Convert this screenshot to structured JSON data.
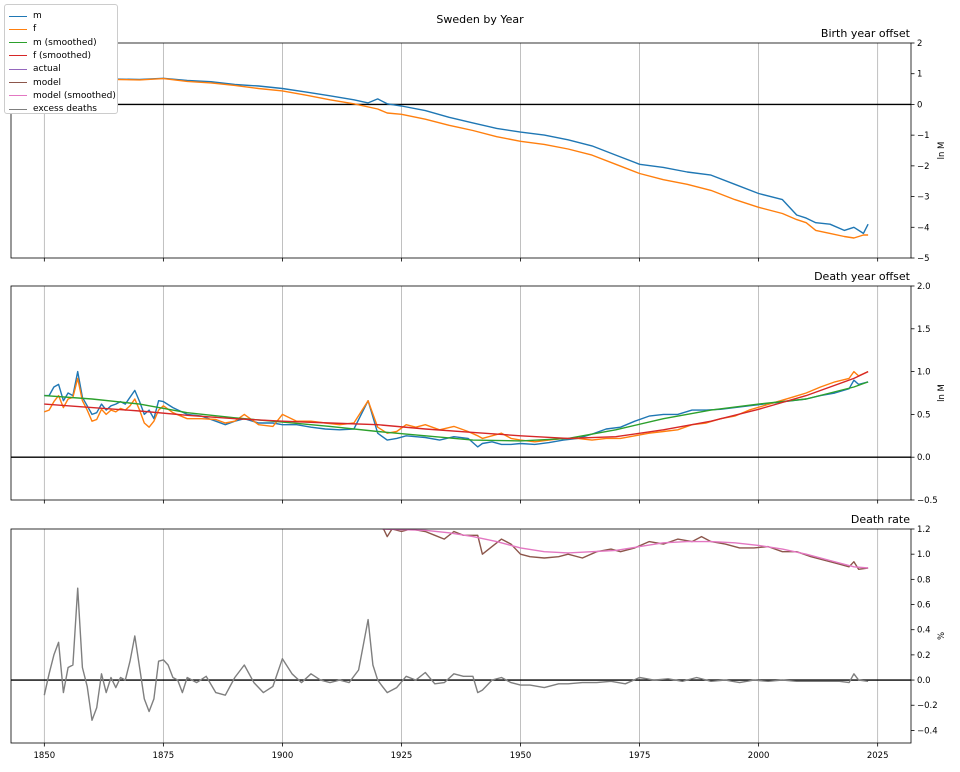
{
  "figure_title": "Sweden by Year",
  "legend": [
    {
      "label": "m",
      "color": "#1f77b4"
    },
    {
      "label": "f",
      "color": "#ff7f0e"
    },
    {
      "label": "m (smoothed)",
      "color": "#2ca02c"
    },
    {
      "label": "f (smoothed)",
      "color": "#d62728"
    },
    {
      "label": "actual",
      "color": "#9467bd"
    },
    {
      "label": "model",
      "color": "#8c564b"
    },
    {
      "label": "model (smoothed)",
      "color": "#e377c2"
    },
    {
      "label": "excess deaths",
      "color": "#7f7f7f"
    }
  ],
  "chart_data": [
    {
      "type": "line",
      "title": "Birth year offset",
      "ylabel": "ln M",
      "xlim": [
        1843,
        2032
      ],
      "ylim": [
        -5,
        2
      ],
      "x_ticks": [
        1850,
        1875,
        1900,
        1925,
        1950,
        1975,
        2000,
        2025
      ],
      "y_ticks": [
        -5,
        -4,
        -3,
        -2,
        -1,
        0,
        1,
        2
      ],
      "grid": "vertical",
      "zero_line": true,
      "series": [
        {
          "name": "m",
          "color": "#1f77b4",
          "x": [
            1843,
            1850,
            1860,
            1870,
            1875,
            1880,
            1885,
            1890,
            1895,
            1900,
            1905,
            1910,
            1915,
            1918,
            1920,
            1922,
            1925,
            1930,
            1935,
            1940,
            1945,
            1950,
            1955,
            1960,
            1965,
            1970,
            1975,
            1980,
            1985,
            1990,
            1995,
            2000,
            2005,
            2008,
            2010,
            2012,
            2015,
            2018,
            2020,
            2022,
            2023
          ],
          "y": [
            0.85,
            0.82,
            0.84,
            0.81,
            0.85,
            0.78,
            0.74,
            0.65,
            0.6,
            0.52,
            0.4,
            0.28,
            0.15,
            0.05,
            0.18,
            0.02,
            -0.05,
            -0.2,
            -0.42,
            -0.6,
            -0.78,
            -0.9,
            -1.0,
            -1.15,
            -1.35,
            -1.65,
            -1.95,
            -2.05,
            -2.2,
            -2.3,
            -2.6,
            -2.9,
            -3.1,
            -3.6,
            -3.7,
            -3.85,
            -3.9,
            -4.1,
            -4.0,
            -4.2,
            -3.9
          ]
        },
        {
          "name": "f",
          "color": "#ff7f0e",
          "x": [
            1843,
            1850,
            1860,
            1870,
            1875,
            1880,
            1885,
            1890,
            1895,
            1900,
            1905,
            1910,
            1915,
            1920,
            1922,
            1925,
            1930,
            1935,
            1940,
            1945,
            1950,
            1955,
            1960,
            1965,
            1970,
            1975,
            1980,
            1985,
            1990,
            1995,
            2000,
            2005,
            2008,
            2010,
            2012,
            2015,
            2018,
            2020,
            2022,
            2023
          ],
          "y": [
            0.82,
            0.8,
            0.82,
            0.8,
            0.84,
            0.75,
            0.7,
            0.62,
            0.52,
            0.44,
            0.3,
            0.15,
            0.02,
            -0.15,
            -0.28,
            -0.32,
            -0.48,
            -0.68,
            -0.85,
            -1.05,
            -1.2,
            -1.3,
            -1.45,
            -1.65,
            -1.95,
            -2.25,
            -2.45,
            -2.6,
            -2.8,
            -3.1,
            -3.35,
            -3.55,
            -3.75,
            -3.85,
            -4.1,
            -4.2,
            -4.3,
            -4.35,
            -4.25,
            -4.25
          ]
        }
      ]
    },
    {
      "type": "line",
      "title": "Death year offset",
      "ylabel": "ln M",
      "xlim": [
        1843,
        2032
      ],
      "ylim": [
        -0.5,
        2.0
      ],
      "x_ticks": [
        1850,
        1875,
        1900,
        1925,
        1950,
        1975,
        2000,
        2025
      ],
      "y_ticks": [
        -0.5,
        0.0,
        0.5,
        1.0,
        1.5,
        2.0
      ],
      "grid": "vertical",
      "zero_line": true,
      "series": [
        {
          "name": "m",
          "color": "#1f77b4",
          "x": [
            1850,
            1851,
            1852,
            1853,
            1854,
            1855,
            1856,
            1857,
            1858,
            1859,
            1860,
            1861,
            1862,
            1863,
            1864,
            1865,
            1866,
            1867,
            1868,
            1869,
            1870,
            1871,
            1872,
            1873,
            1874,
            1875,
            1877,
            1880,
            1883,
            1886,
            1888,
            1890,
            1892,
            1895,
            1898,
            1900,
            1903,
            1906,
            1909,
            1912,
            1915,
            1918,
            1920,
            1922,
            1924,
            1926,
            1928,
            1930,
            1933,
            1936,
            1939,
            1941,
            1942,
            1944,
            1946,
            1948,
            1950,
            1953,
            1956,
            1959,
            1962,
            1965,
            1968,
            1971,
            1974,
            1977,
            1980,
            1983,
            1986,
            1989,
            1992,
            1995,
            1998,
            2001,
            2004,
            2007,
            2010,
            2013,
            2016,
            2019,
            2020,
            2021,
            2023
          ],
          "y": [
            0.72,
            0.72,
            0.82,
            0.85,
            0.66,
            0.75,
            0.72,
            1.0,
            0.7,
            0.6,
            0.5,
            0.52,
            0.62,
            0.55,
            0.6,
            0.62,
            0.65,
            0.62,
            0.7,
            0.78,
            0.65,
            0.5,
            0.55,
            0.45,
            0.66,
            0.65,
            0.58,
            0.5,
            0.48,
            0.42,
            0.38,
            0.42,
            0.45,
            0.4,
            0.4,
            0.38,
            0.38,
            0.35,
            0.33,
            0.32,
            0.33,
            0.66,
            0.28,
            0.2,
            0.22,
            0.25,
            0.24,
            0.23,
            0.2,
            0.24,
            0.22,
            0.12,
            0.16,
            0.18,
            0.15,
            0.15,
            0.16,
            0.15,
            0.17,
            0.2,
            0.22,
            0.27,
            0.33,
            0.35,
            0.42,
            0.48,
            0.5,
            0.5,
            0.55,
            0.55,
            0.56,
            0.58,
            0.6,
            0.62,
            0.64,
            0.66,
            0.68,
            0.72,
            0.75,
            0.8,
            0.9,
            0.85,
            0.88
          ]
        },
        {
          "name": "f",
          "color": "#ff7f0e",
          "x": [
            1850,
            1851,
            1852,
            1853,
            1854,
            1855,
            1856,
            1857,
            1858,
            1859,
            1860,
            1861,
            1862,
            1863,
            1864,
            1865,
            1866,
            1867,
            1868,
            1869,
            1870,
            1871,
            1872,
            1873,
            1874,
            1875,
            1877,
            1880,
            1883,
            1886,
            1888,
            1890,
            1892,
            1895,
            1898,
            1900,
            1903,
            1906,
            1909,
            1912,
            1915,
            1918,
            1920,
            1922,
            1924,
            1926,
            1928,
            1930,
            1933,
            1936,
            1939,
            1941,
            1942,
            1944,
            1946,
            1948,
            1950,
            1953,
            1956,
            1959,
            1962,
            1965,
            1968,
            1971,
            1974,
            1977,
            1980,
            1983,
            1986,
            1989,
            1992,
            1995,
            1998,
            2001,
            2004,
            2007,
            2010,
            2013,
            2016,
            2019,
            2020,
            2021,
            2023
          ],
          "y": [
            0.53,
            0.55,
            0.65,
            0.72,
            0.58,
            0.68,
            0.7,
            0.92,
            0.66,
            0.55,
            0.42,
            0.44,
            0.56,
            0.5,
            0.55,
            0.53,
            0.57,
            0.55,
            0.6,
            0.68,
            0.55,
            0.4,
            0.35,
            0.42,
            0.55,
            0.6,
            0.52,
            0.45,
            0.45,
            0.44,
            0.4,
            0.42,
            0.5,
            0.38,
            0.36,
            0.5,
            0.42,
            0.42,
            0.4,
            0.38,
            0.4,
            0.66,
            0.35,
            0.28,
            0.3,
            0.38,
            0.35,
            0.38,
            0.32,
            0.36,
            0.3,
            0.25,
            0.22,
            0.25,
            0.28,
            0.22,
            0.2,
            0.18,
            0.2,
            0.22,
            0.22,
            0.2,
            0.22,
            0.22,
            0.25,
            0.28,
            0.3,
            0.32,
            0.38,
            0.4,
            0.45,
            0.48,
            0.55,
            0.6,
            0.65,
            0.7,
            0.75,
            0.82,
            0.88,
            0.92,
            1.0,
            0.95,
            1.0
          ]
        },
        {
          "name": "m (smoothed)",
          "color": "#2ca02c",
          "x": [
            1850,
            1860,
            1870,
            1880,
            1890,
            1900,
            1910,
            1920,
            1930,
            1940,
            1950,
            1960,
            1970,
            1980,
            1990,
            2000,
            2010,
            2020,
            2023
          ],
          "y": [
            0.72,
            0.68,
            0.62,
            0.52,
            0.46,
            0.41,
            0.36,
            0.3,
            0.25,
            0.2,
            0.19,
            0.22,
            0.32,
            0.45,
            0.55,
            0.62,
            0.68,
            0.82,
            0.88
          ]
        },
        {
          "name": "f (smoothed)",
          "color": "#d62728",
          "x": [
            1850,
            1860,
            1870,
            1880,
            1890,
            1900,
            1910,
            1920,
            1930,
            1940,
            1950,
            1960,
            1970,
            1980,
            1990,
            2000,
            2010,
            2020,
            2023
          ],
          "y": [
            0.62,
            0.58,
            0.54,
            0.49,
            0.45,
            0.42,
            0.4,
            0.38,
            0.33,
            0.29,
            0.25,
            0.22,
            0.24,
            0.32,
            0.42,
            0.56,
            0.72,
            0.92,
            1.0
          ]
        }
      ]
    },
    {
      "type": "line",
      "title": "Death rate",
      "ylabel": "%",
      "xlim": [
        1843,
        2032
      ],
      "ylim": [
        -0.5,
        1.2
      ],
      "x_ticks": [
        1850,
        1875,
        1900,
        1925,
        1950,
        1975,
        2000,
        2025
      ],
      "y_ticks": [
        -0.4,
        -0.2,
        0.0,
        0.2,
        0.4,
        0.6,
        0.8,
        1.0,
        1.2
      ],
      "grid": "vertical",
      "zero_line": true,
      "series": [
        {
          "name": "model",
          "color": "#8c564b",
          "x": [
            1921,
            1922,
            1923,
            1925,
            1927,
            1930,
            1932,
            1934,
            1936,
            1938,
            1941,
            1942,
            1944,
            1946,
            1948,
            1950,
            1952,
            1955,
            1958,
            1960,
            1963,
            1966,
            1969,
            1971,
            1974,
            1977,
            1980,
            1983,
            1986,
            1988,
            1990,
            1993,
            1996,
            1999,
            2002,
            2005,
            2008,
            2011,
            2014,
            2017,
            2019,
            2020,
            2021,
            2023
          ],
          "y": [
            1.22,
            1.14,
            1.2,
            1.18,
            1.2,
            1.18,
            1.15,
            1.12,
            1.18,
            1.15,
            1.15,
            1.0,
            1.06,
            1.12,
            1.08,
            1.0,
            0.98,
            0.97,
            0.98,
            1.0,
            0.97,
            1.02,
            1.04,
            1.02,
            1.05,
            1.1,
            1.08,
            1.12,
            1.1,
            1.14,
            1.1,
            1.08,
            1.05,
            1.05,
            1.06,
            1.02,
            1.02,
            0.98,
            0.95,
            0.92,
            0.9,
            0.94,
            0.88,
            0.89
          ]
        },
        {
          "name": "model (smoothed)",
          "color": "#e377c2",
          "x": [
            1921,
            1930,
            1935,
            1940,
            1945,
            1950,
            1955,
            1960,
            1965,
            1970,
            1975,
            1980,
            1985,
            1990,
            1995,
            2000,
            2005,
            2010,
            2015,
            2020,
            2023
          ],
          "y": [
            1.2,
            1.19,
            1.17,
            1.14,
            1.1,
            1.05,
            1.02,
            1.01,
            1.02,
            1.03,
            1.06,
            1.09,
            1.1,
            1.1,
            1.09,
            1.07,
            1.04,
            1.0,
            0.95,
            0.9,
            0.89
          ]
        },
        {
          "name": "excess deaths",
          "color": "#7f7f7f",
          "x": [
            1850,
            1851,
            1852,
            1853,
            1854,
            1855,
            1856,
            1857,
            1858,
            1859,
            1860,
            1861,
            1862,
            1863,
            1864,
            1865,
            1866,
            1867,
            1868,
            1869,
            1870,
            1871,
            1872,
            1873,
            1874,
            1875,
            1876,
            1877,
            1878,
            1879,
            1880,
            1882,
            1884,
            1886,
            1888,
            1890,
            1892,
            1894,
            1896,
            1898,
            1900,
            1902,
            1904,
            1906,
            1908,
            1910,
            1912,
            1914,
            1916,
            1918,
            1919,
            1920,
            1921,
            1922,
            1924,
            1926,
            1928,
            1930,
            1932,
            1934,
            1936,
            1938,
            1940,
            1941,
            1942,
            1944,
            1946,
            1948,
            1950,
            1952,
            1955,
            1958,
            1960,
            1963,
            1966,
            1969,
            1972,
            1975,
            1978,
            1981,
            1984,
            1987,
            1990,
            1993,
            1996,
            1999,
            2002,
            2005,
            2008,
            2011,
            2014,
            2017,
            2019,
            2020,
            2021,
            2023
          ],
          "y": [
            -0.12,
            0.05,
            0.2,
            0.3,
            -0.1,
            0.1,
            0.12,
            0.73,
            0.1,
            -0.05,
            -0.32,
            -0.22,
            0.05,
            -0.1,
            0.02,
            -0.06,
            0.02,
            0.0,
            0.15,
            0.35,
            0.1,
            -0.15,
            -0.25,
            -0.15,
            0.15,
            0.16,
            0.12,
            0.02,
            0.0,
            -0.1,
            0.02,
            -0.02,
            0.03,
            -0.1,
            -0.12,
            0.02,
            0.12,
            -0.02,
            -0.1,
            -0.05,
            0.17,
            0.05,
            -0.02,
            0.05,
            0.0,
            -0.02,
            0.0,
            -0.02,
            0.08,
            0.48,
            0.12,
            0.0,
            -0.05,
            -0.1,
            -0.06,
            0.03,
            0.0,
            0.06,
            -0.03,
            -0.02,
            0.05,
            0.03,
            0.03,
            -0.1,
            -0.08,
            0.0,
            0.02,
            -0.02,
            -0.04,
            -0.04,
            -0.06,
            -0.03,
            -0.03,
            -0.02,
            -0.02,
            -0.01,
            -0.03,
            0.02,
            0.0,
            0.01,
            -0.01,
            0.02,
            -0.01,
            0.0,
            -0.02,
            0.0,
            -0.01,
            0.0,
            -0.01,
            -0.01,
            -0.01,
            -0.01,
            -0.02,
            0.05,
            0.0,
            -0.01
          ]
        }
      ]
    }
  ]
}
